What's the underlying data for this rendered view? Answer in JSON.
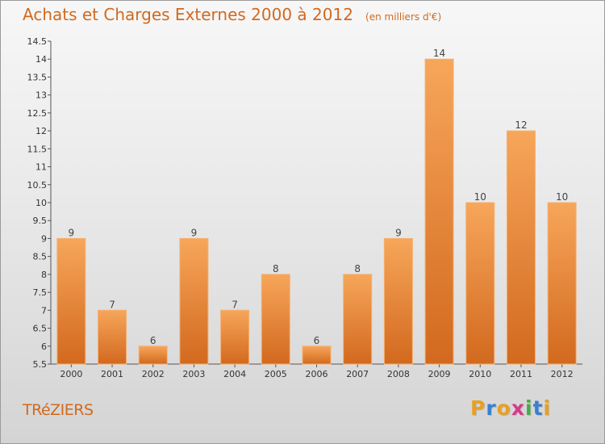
{
  "chart_data": {
    "type": "bar",
    "title": "Achats et Charges Externes 2000 à 2012",
    "unit_note": "(en milliers d'€)",
    "categories": [
      "2000",
      "2001",
      "2002",
      "2003",
      "2004",
      "2005",
      "2006",
      "2007",
      "2008",
      "2009",
      "2010",
      "2011",
      "2012"
    ],
    "values": [
      9,
      7,
      6,
      9,
      7,
      8,
      6,
      8,
      9,
      14,
      10,
      12,
      10
    ],
    "xlabel": "",
    "ylabel": "",
    "ylim": [
      5.5,
      14.5
    ],
    "yticks": [
      "5.5",
      "6",
      "6.5",
      "7",
      "7.5",
      "8",
      "8.5",
      "9",
      "9.5",
      "10",
      "10.5",
      "11",
      "11.5",
      "12",
      "12.5",
      "13",
      "13.5",
      "14",
      "14.5"
    ],
    "grid": false,
    "legend": "none",
    "bar_color": "#f0913a"
  },
  "commune": "TRéZIERS",
  "brand": {
    "letters": [
      "P",
      "r",
      "o",
      "x",
      "i",
      "t",
      "i"
    ],
    "colors": [
      "#e8a020",
      "#3a7fd0",
      "#e8a020",
      "#d63a8a",
      "#4aa84a",
      "#3a7fd0",
      "#e8a020"
    ]
  }
}
